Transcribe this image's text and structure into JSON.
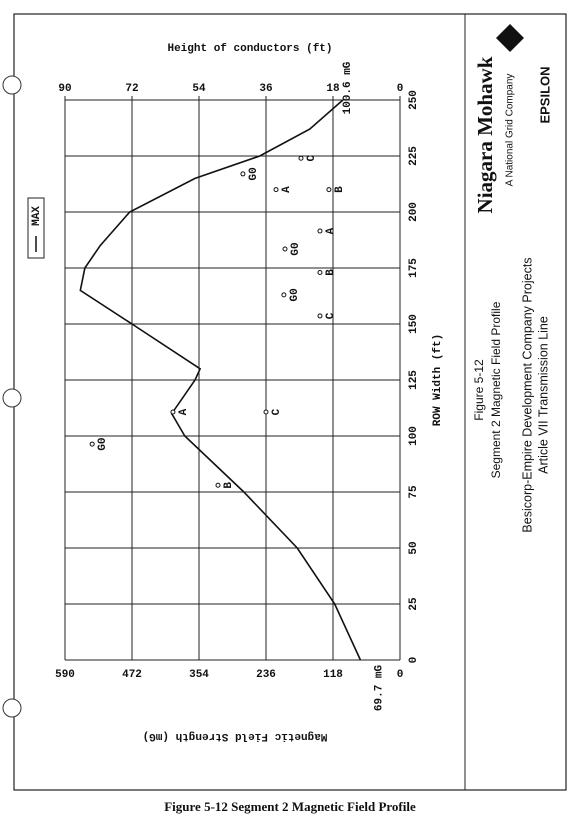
{
  "chart_data": {
    "type": "line",
    "top_axis_label": "Height of conductors (ft)",
    "x_label": "ROW Width (ft)",
    "y_label": "Magnetic Field Strength (mG)",
    "x": [
      0,
      25,
      50,
      75,
      100,
      110,
      125,
      130,
      150,
      165,
      175,
      185,
      200,
      215,
      225,
      237,
      250
    ],
    "series": [
      {
        "name": "MAX",
        "color": "#111111",
        "values": [
          69.7,
          115,
          181,
          275,
          379,
          402,
          361,
          352,
          472,
          563,
          555,
          528,
          476,
          361,
          247,
          159,
          100.6
        ],
        "value_labels": [
          "69.7 mG",
          null,
          null,
          null,
          null,
          null,
          null,
          null,
          null,
          null,
          null,
          null,
          null,
          null,
          null,
          null,
          "100.6 mG"
        ]
      }
    ],
    "conductors": {
      "axis": "y2",
      "x": [
        96.4,
        110.7,
        110.7,
        78,
        153.6,
        163,
        173,
        183.5,
        191.5,
        217,
        210,
        210,
        224
      ],
      "values": [
        82.7,
        61,
        36,
        48.9,
        21.5,
        31.2,
        21.5,
        30.9,
        21.5,
        42.2,
        33.3,
        19.1,
        26.6
      ],
      "labels": [
        "G0",
        "A",
        "C",
        "B",
        "C",
        "G0",
        "B",
        "G0",
        "A",
        "G0",
        "A",
        "B",
        "C"
      ]
    },
    "xlim": [
      0,
      250
    ],
    "xticks": [
      0,
      25,
      50,
      75,
      100,
      125,
      150,
      175,
      200,
      225,
      250
    ],
    "ylim": [
      0,
      590
    ],
    "yticks": [
      0,
      118,
      236,
      354,
      472,
      590
    ],
    "y2lim": [
      0,
      90
    ],
    "y2ticks": [
      0,
      18,
      36,
      54,
      72,
      90
    ],
    "grid": true
  },
  "sidebar": {
    "company": "Niagara Mohawk",
    "company_tagline": "A National Grid Company",
    "partner": "EPSILON",
    "figure_number": "Figure 5-12",
    "figure_title": "Segment 2 Magnetic Field Profile",
    "project": "Besicorp-Empire Development Company Projects",
    "project_line": "Article VII Transmission Line"
  },
  "caption": "Figure 5-12 Segment 2 Magnetic Field Profile"
}
